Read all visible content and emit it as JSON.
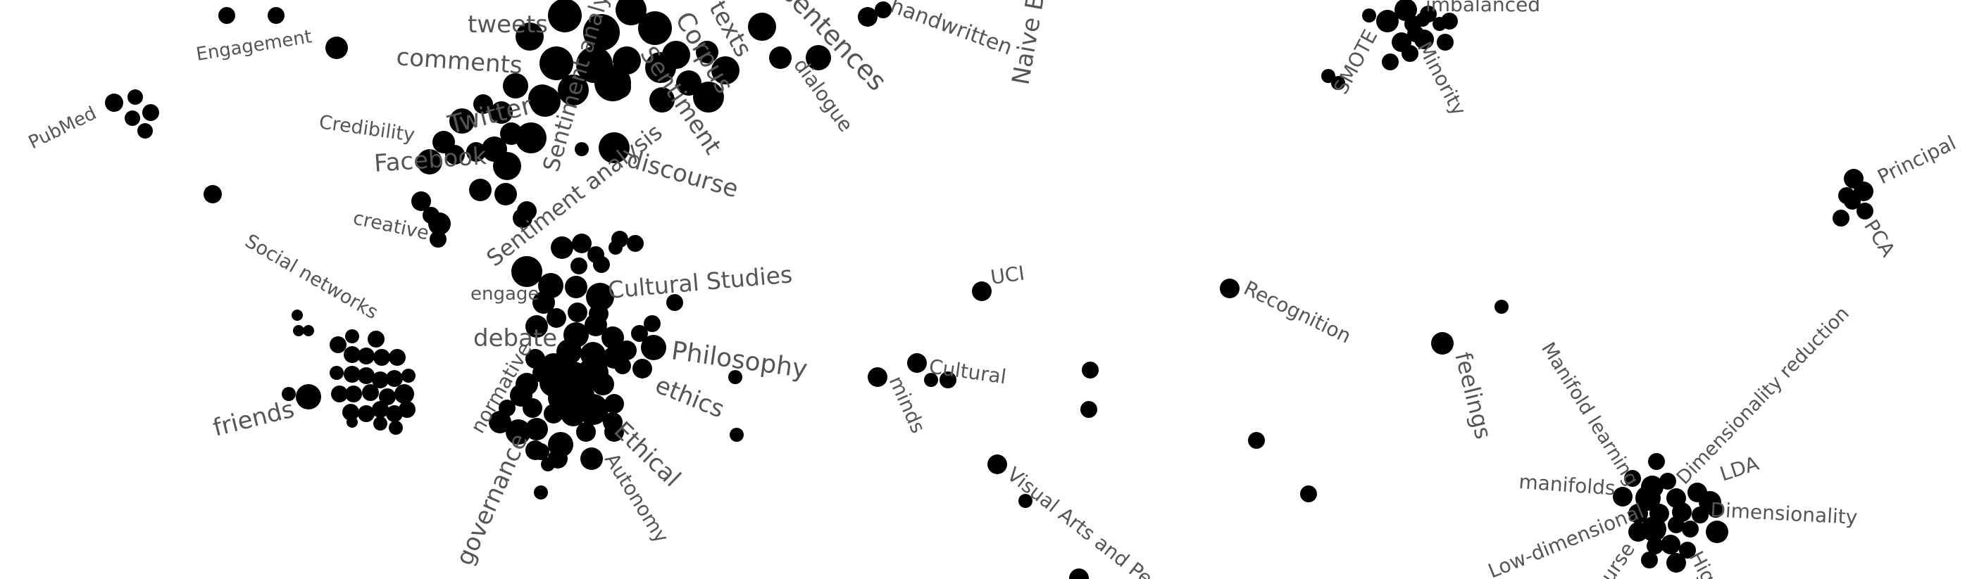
{
  "diagram": {
    "type": "keyword-cluster-map",
    "dot_color": "#000000",
    "label_color": "#555555",
    "background": "#ffffff",
    "labels": [
      {
        "id": "engagement",
        "text": "Engagement"
      },
      {
        "id": "tweets",
        "text": "tweets"
      },
      {
        "id": "comments",
        "text": "comments"
      },
      {
        "id": "texts",
        "text": "texts"
      },
      {
        "id": "corpus",
        "text": "Corpus"
      },
      {
        "id": "sentences",
        "text": "sentences"
      },
      {
        "id": "handwritten",
        "text": "handwritten"
      },
      {
        "id": "naive-bayes",
        "text": "Naive B"
      },
      {
        "id": "imbalanced",
        "text": "imbalanced"
      },
      {
        "id": "smote",
        "text": "SMOTE"
      },
      {
        "id": "minority",
        "text": "Minority"
      },
      {
        "id": "pubmed",
        "text": "PubMed"
      },
      {
        "id": "credibility",
        "text": "Credibility"
      },
      {
        "id": "twitter",
        "text": "Twitter"
      },
      {
        "id": "sentiment-1",
        "text": "Sentiment"
      },
      {
        "id": "dialogue",
        "text": "dialogue"
      },
      {
        "id": "sentiment-analysis-1",
        "text": "Sentiment analysis"
      },
      {
        "id": "facebook",
        "text": "Facebook"
      },
      {
        "id": "discourse",
        "text": "discourse"
      },
      {
        "id": "creative",
        "text": "creative"
      },
      {
        "id": "sentiment-analysis-2",
        "text": "Sentiment analysis"
      },
      {
        "id": "principal",
        "text": "Principal"
      },
      {
        "id": "pca",
        "text": "PCA"
      },
      {
        "id": "social-networks",
        "text": "Social networks"
      },
      {
        "id": "engage",
        "text": "engage"
      },
      {
        "id": "cultural-studies",
        "text": "Cultural Studies"
      },
      {
        "id": "uci",
        "text": "UCI"
      },
      {
        "id": "recognition",
        "text": "Recognition"
      },
      {
        "id": "debate",
        "text": "debate"
      },
      {
        "id": "philosophy",
        "text": "Philosophy"
      },
      {
        "id": "cultural",
        "text": "Cultural"
      },
      {
        "id": "friends",
        "text": "friends"
      },
      {
        "id": "normative",
        "text": "normative"
      },
      {
        "id": "ethics",
        "text": "ethics"
      },
      {
        "id": "minds",
        "text": "minds"
      },
      {
        "id": "feelings",
        "text": "feelings"
      },
      {
        "id": "manifold-learning",
        "text": "Manifold learning"
      },
      {
        "id": "dimensionality-reduction",
        "text": "Dimensionality reduction"
      },
      {
        "id": "ethical",
        "text": "Ethical"
      },
      {
        "id": "governance",
        "text": "governance"
      },
      {
        "id": "autonomy",
        "text": "Autonomy"
      },
      {
        "id": "visual-arts",
        "text": "Visual Arts and Per"
      },
      {
        "id": "manifolds",
        "text": "manifolds"
      },
      {
        "id": "lda",
        "text": "LDA"
      },
      {
        "id": "dimensionality",
        "text": "Dimensionality"
      },
      {
        "id": "low-dimensional",
        "text": "Low-dimensional"
      },
      {
        "id": "course",
        "text": "urse"
      },
      {
        "id": "hig",
        "text": "Hig"
      }
    ]
  }
}
